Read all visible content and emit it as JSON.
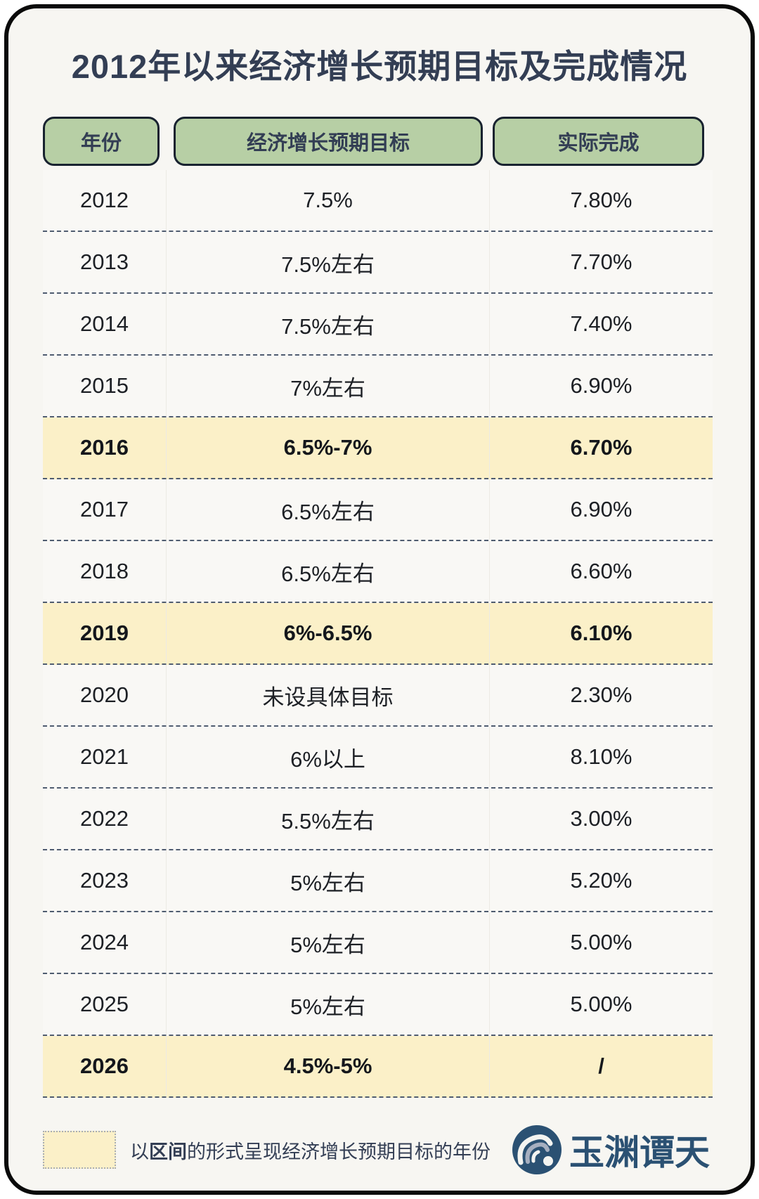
{
  "title": "2012年以来经济增长预期目标及完成情况",
  "chart_data": {
    "type": "table",
    "title": "2012年以来经济增长预期目标及完成情况",
    "columns": [
      "年份",
      "经济增长预期目标",
      "实际完成"
    ],
    "rows": [
      {
        "year": "2012",
        "target": "7.5%",
        "actual": "7.80%",
        "highlight": false
      },
      {
        "year": "2013",
        "target": "7.5%左右",
        "actual": "7.70%",
        "highlight": false
      },
      {
        "year": "2014",
        "target": "7.5%左右",
        "actual": "7.40%",
        "highlight": false
      },
      {
        "year": "2015",
        "target": "7%左右",
        "actual": "6.90%",
        "highlight": false
      },
      {
        "year": "2016",
        "target": "6.5%-7%",
        "actual": "6.70%",
        "highlight": true
      },
      {
        "year": "2017",
        "target": "6.5%左右",
        "actual": "6.90%",
        "highlight": false
      },
      {
        "year": "2018",
        "target": "6.5%左右",
        "actual": "6.60%",
        "highlight": false
      },
      {
        "year": "2019",
        "target": "6%-6.5%",
        "actual": "6.10%",
        "highlight": true
      },
      {
        "year": "2020",
        "target": "未设具体目标",
        "actual": "2.30%",
        "highlight": false
      },
      {
        "year": "2021",
        "target": "6%以上",
        "actual": "8.10%",
        "highlight": false
      },
      {
        "year": "2022",
        "target": "5.5%左右",
        "actual": "3.00%",
        "highlight": false
      },
      {
        "year": "2023",
        "target": "5%左右",
        "actual": "5.20%",
        "highlight": false
      },
      {
        "year": "2024",
        "target": "5%左右",
        "actual": "5.00%",
        "highlight": false
      },
      {
        "year": "2025",
        "target": "5%左右",
        "actual": "5.00%",
        "highlight": false
      },
      {
        "year": "2026",
        "target": "4.5%-5%",
        "actual": "/",
        "highlight": true
      }
    ],
    "highlighted_years": [
      "2016",
      "2019",
      "2026"
    ],
    "legend_note": "以区间的形式呈现经济增长预期目标的年份",
    "colors": {
      "header_fill": "#B7CFA5",
      "highlight_fill": "#FBF0C8",
      "title_text": "#333E54",
      "dashed_rule": "#4F5C70",
      "brand_blue": "#2B5173"
    }
  },
  "legend": {
    "prefix": "以",
    "bold": "区间",
    "suffix": "的形式呈现经济增长预期目标的年份"
  },
  "logo": {
    "brand": "玉渊谭天"
  }
}
